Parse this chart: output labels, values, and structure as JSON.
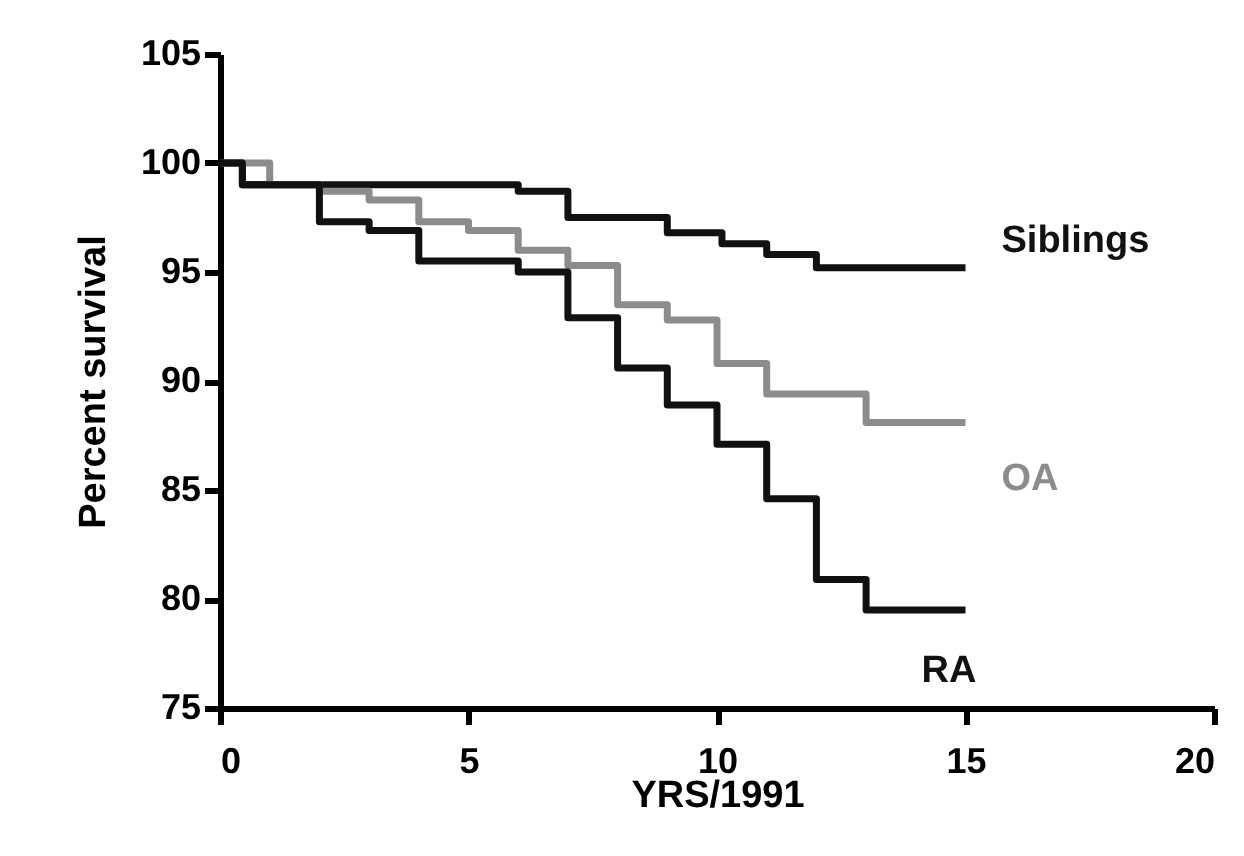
{
  "chart_data": {
    "type": "step",
    "xlabel": "YRS/1991",
    "ylabel": "Percent survival",
    "xlim": [
      0,
      20
    ],
    "xticks": [
      0,
      5,
      10,
      15,
      20
    ],
    "ylim": [
      75,
      105
    ],
    "yticks": [
      75,
      80,
      85,
      90,
      95,
      100,
      105
    ],
    "grid": false,
    "line_style": "solid",
    "series": [
      {
        "name": "Siblings",
        "color": "#111111",
        "x": [
          0,
          0.45,
          6,
          7,
          9,
          10.1,
          11,
          12,
          15
        ],
        "values": [
          100,
          99,
          98.7,
          97.5,
          96.8,
          96.3,
          95.8,
          95.2,
          95.2
        ]
      },
      {
        "name": "OA",
        "color": "#8c8c8c",
        "x": [
          0,
          1,
          2,
          3,
          4,
          5,
          6,
          7,
          8,
          9,
          10,
          11,
          13,
          15
        ],
        "values": [
          100,
          99,
          98.7,
          98.3,
          97.3,
          96.9,
          96,
          95.3,
          93.5,
          92.8,
          90.8,
          89.4,
          88.1,
          88.1
        ]
      },
      {
        "name": "RA",
        "color": "#111111",
        "x": [
          0,
          0.45,
          2,
          3,
          4,
          6,
          7,
          8,
          9,
          10,
          11,
          12,
          13,
          15
        ],
        "values": [
          100,
          99,
          97.3,
          96.9,
          95.5,
          95,
          92.9,
          90.6,
          88.9,
          87.1,
          84.6,
          80.9,
          79.5,
          79.5
        ]
      }
    ]
  }
}
